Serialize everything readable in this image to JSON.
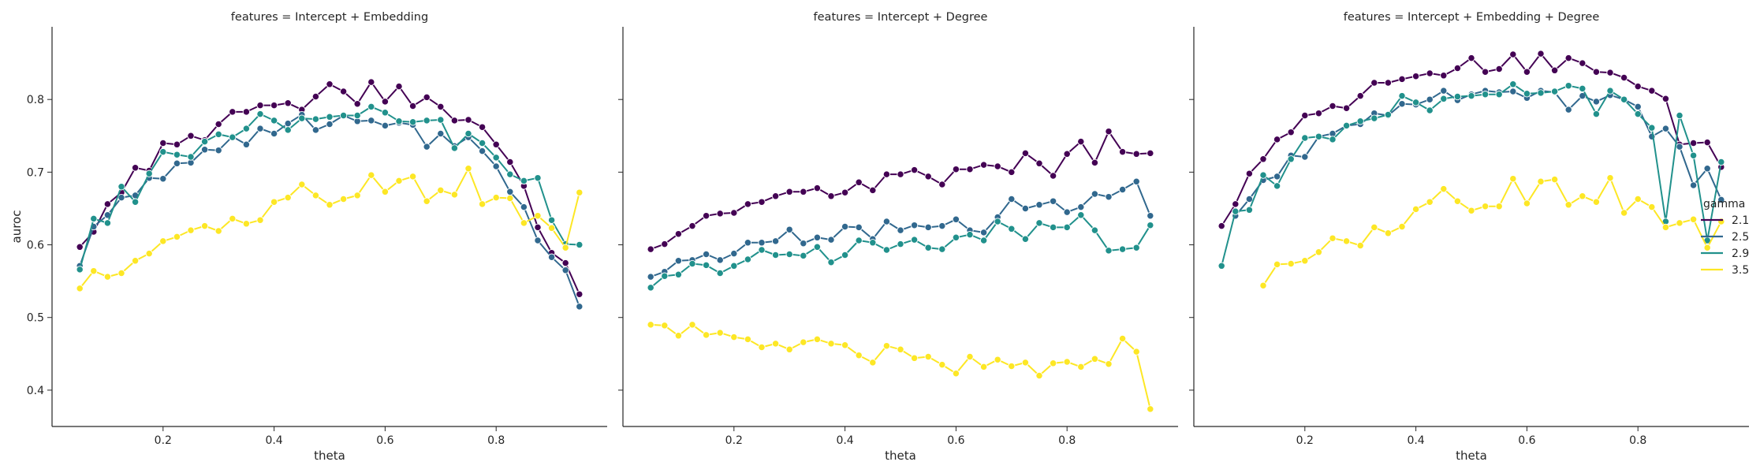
{
  "chart_data": {
    "type": "line",
    "ylabel": "auroc",
    "xlabel": "theta",
    "xlim": [
      0.0,
      1.0
    ],
    "ylim": [
      0.35,
      0.9
    ],
    "xticks": [
      0.2,
      0.4,
      0.6,
      0.8
    ],
    "xtick_labels": [
      "0.2",
      "0.4",
      "0.6",
      "0.8"
    ],
    "yticks": [
      0.4,
      0.5,
      0.6,
      0.7,
      0.8
    ],
    "ytick_labels": [
      "0.4",
      "0.5",
      "0.6",
      "0.7",
      "0.8"
    ],
    "grid": false,
    "markers": true,
    "legend": {
      "title": "gamma",
      "placement": "right",
      "entries": [
        "2.1",
        "2.5",
        "2.9",
        "3.5"
      ],
      "colors": [
        "#440154",
        "#31688e",
        "#21918c",
        "#fde725"
      ]
    },
    "panels": [
      {
        "title": "features = Intercept + Embedding",
        "x": [
          0.05,
          0.075,
          0.1,
          0.125,
          0.15,
          0.175,
          0.2,
          0.225,
          0.25,
          0.275,
          0.3,
          0.325,
          0.35,
          0.375,
          0.4,
          0.425,
          0.45,
          0.475,
          0.5,
          0.525,
          0.55,
          0.575,
          0.6,
          0.625,
          0.65,
          0.675,
          0.7,
          0.725,
          0.75,
          0.775,
          0.8,
          0.825,
          0.85,
          0.875,
          0.9,
          0.925,
          0.95
        ],
        "series": [
          {
            "name": "2.1",
            "values": [
              0.597,
              0.618,
              0.656,
              0.672,
              0.706,
              0.702,
              0.74,
              0.738,
              0.75,
              0.744,
              0.766,
              0.783,
              0.783,
              0.792,
              0.792,
              0.795,
              0.786,
              0.804,
              0.821,
              0.811,
              0.794,
              0.824,
              0.797,
              0.818,
              0.791,
              0.803,
              0.79,
              0.771,
              0.772,
              0.762,
              0.738,
              0.714,
              0.681,
              0.624,
              0.589,
              0.575,
              0.532
            ]
          },
          {
            "name": "2.5",
            "values": [
              0.571,
              0.625,
              0.641,
              0.665,
              0.668,
              0.692,
              0.691,
              0.712,
              0.713,
              0.731,
              0.73,
              0.749,
              0.738,
              0.76,
              0.753,
              0.767,
              0.779,
              0.758,
              0.766,
              0.778,
              0.77,
              0.771,
              0.764,
              0.768,
              0.765,
              0.735,
              0.753,
              0.736,
              0.748,
              0.729,
              0.708,
              0.673,
              0.652,
              0.606,
              0.583,
              0.565,
              0.515
            ]
          },
          {
            "name": "2.9",
            "values": [
              0.566,
              0.636,
              0.63,
              0.68,
              0.659,
              0.698,
              0.728,
              0.724,
              0.721,
              0.742,
              0.752,
              0.748,
              0.76,
              0.78,
              0.771,
              0.758,
              0.774,
              0.773,
              0.776,
              0.778,
              0.778,
              0.79,
              0.782,
              0.77,
              0.769,
              0.771,
              0.772,
              0.733,
              0.753,
              0.74,
              0.72,
              0.697,
              0.688,
              0.692,
              0.634,
              0.601,
              0.6
            ]
          },
          {
            "name": "3.5",
            "values": [
              0.54,
              0.564,
              0.556,
              0.561,
              0.578,
              0.588,
              0.605,
              0.611,
              0.62,
              0.626,
              0.619,
              0.636,
              0.629,
              0.634,
              0.659,
              0.665,
              0.683,
              0.668,
              0.655,
              0.663,
              0.668,
              0.696,
              0.673,
              0.688,
              0.694,
              0.66,
              0.675,
              0.669,
              0.705,
              0.656,
              0.665,
              0.664,
              0.63,
              0.64,
              0.623,
              0.596,
              0.672
            ]
          }
        ]
      },
      {
        "title": "features = Intercept + Degree",
        "x": [
          0.05,
          0.075,
          0.1,
          0.125,
          0.15,
          0.175,
          0.2,
          0.225,
          0.25,
          0.275,
          0.3,
          0.325,
          0.35,
          0.375,
          0.4,
          0.425,
          0.45,
          0.475,
          0.5,
          0.525,
          0.55,
          0.575,
          0.6,
          0.625,
          0.65,
          0.675,
          0.7,
          0.725,
          0.75,
          0.775,
          0.8,
          0.825,
          0.85,
          0.875,
          0.9,
          0.925,
          0.95
        ],
        "series": [
          {
            "name": "2.1",
            "values": [
              0.594,
              0.601,
              0.615,
              0.626,
              0.64,
              0.643,
              0.644,
              0.656,
              0.659,
              0.667,
              0.673,
              0.673,
              0.678,
              0.667,
              0.672,
              0.686,
              0.675,
              0.697,
              0.697,
              0.703,
              0.694,
              0.683,
              0.704,
              0.704,
              0.71,
              0.708,
              0.7,
              0.726,
              0.712,
              0.695,
              0.725,
              0.742,
              0.713,
              0.756,
              0.728,
              0.725,
              0.726
            ]
          },
          {
            "name": "2.5",
            "values": [
              0.556,
              0.563,
              0.578,
              0.579,
              0.587,
              0.579,
              0.588,
              0.603,
              0.603,
              0.605,
              0.621,
              0.602,
              0.61,
              0.607,
              0.625,
              0.624,
              0.608,
              0.632,
              0.62,
              0.627,
              0.624,
              0.626,
              0.635,
              0.62,
              0.617,
              0.638,
              0.663,
              0.65,
              0.655,
              0.66,
              0.645,
              0.652,
              0.67,
              0.666,
              0.676,
              0.687,
              0.64
            ]
          },
          {
            "name": "2.9",
            "values": [
              0.541,
              0.557,
              0.559,
              0.574,
              0.572,
              0.561,
              0.571,
              0.58,
              0.593,
              0.586,
              0.587,
              0.585,
              0.597,
              0.576,
              0.586,
              0.606,
              0.603,
              0.593,
              0.601,
              0.607,
              0.596,
              0.594,
              0.61,
              0.614,
              0.606,
              0.632,
              0.622,
              0.608,
              0.63,
              0.624,
              0.624,
              0.641,
              0.62,
              0.592,
              0.594,
              0.596,
              0.627
            ]
          },
          {
            "name": "3.5",
            "values": [
              0.49,
              0.489,
              0.475,
              0.49,
              0.476,
              0.479,
              0.473,
              0.47,
              0.459,
              0.464,
              0.456,
              0.466,
              0.47,
              0.464,
              0.462,
              0.448,
              0.438,
              0.461,
              0.456,
              0.444,
              0.446,
              0.435,
              0.423,
              0.446,
              0.432,
              0.442,
              0.433,
              0.438,
              0.42,
              0.437,
              0.439,
              0.432,
              0.443,
              0.436,
              0.471,
              0.453,
              0.374
            ]
          }
        ]
      },
      {
        "title": "features = Intercept + Embedding + Degree",
        "x": [
          0.05,
          0.075,
          0.1,
          0.125,
          0.15,
          0.175,
          0.2,
          0.225,
          0.25,
          0.275,
          0.3,
          0.325,
          0.35,
          0.375,
          0.4,
          0.425,
          0.45,
          0.475,
          0.5,
          0.525,
          0.55,
          0.575,
          0.6,
          0.625,
          0.65,
          0.675,
          0.7,
          0.725,
          0.75,
          0.775,
          0.8,
          0.825,
          0.85,
          0.875,
          0.9,
          0.925,
          0.95
        ],
        "series": [
          {
            "name": "2.1",
            "values": [
              0.626,
              0.656,
              0.698,
              0.718,
              0.745,
              0.755,
              0.778,
              0.781,
              0.791,
              0.788,
              0.805,
              0.823,
              0.823,
              0.828,
              0.832,
              0.836,
              0.833,
              0.843,
              0.857,
              0.838,
              0.842,
              0.862,
              0.838,
              0.863,
              0.84,
              0.857,
              0.85,
              0.838,
              0.837,
              0.83,
              0.818,
              0.812,
              0.801,
              0.738,
              0.74,
              0.741,
              0.707
            ]
          },
          {
            "name": "2.5",
            "values": [
              null,
              0.64,
              0.663,
              0.689,
              0.694,
              0.723,
              0.721,
              0.749,
              0.753,
              0.764,
              0.766,
              0.781,
              0.778,
              0.794,
              0.793,
              0.8,
              0.812,
              0.799,
              0.807,
              0.812,
              0.81,
              0.811,
              0.802,
              0.812,
              0.81,
              0.786,
              0.805,
              0.797,
              0.806,
              0.8,
              0.79,
              0.749,
              0.76,
              0.735,
              0.682,
              0.705,
              0.662
            ]
          },
          {
            "name": "2.9",
            "values": [
              0.571,
              0.646,
              0.648,
              0.696,
              0.681,
              0.718,
              0.747,
              0.749,
              0.745,
              0.764,
              0.77,
              0.774,
              0.779,
              0.805,
              0.796,
              0.785,
              0.801,
              0.804,
              0.805,
              0.807,
              0.807,
              0.821,
              0.808,
              0.809,
              0.811,
              0.819,
              0.815,
              0.78,
              0.812,
              0.8,
              0.78,
              0.761,
              0.632,
              0.778,
              0.723,
              0.606,
              0.714
            ]
          },
          {
            "name": "3.5",
            "values": [
              null,
              null,
              null,
              0.544,
              0.573,
              0.574,
              0.578,
              0.59,
              0.609,
              0.605,
              0.599,
              0.624,
              0.616,
              0.625,
              0.649,
              0.659,
              0.677,
              0.66,
              0.647,
              0.653,
              0.653,
              0.691,
              0.657,
              0.687,
              0.69,
              0.655,
              0.667,
              0.659,
              0.692,
              0.644,
              0.663,
              0.652,
              0.624,
              0.63,
              0.635,
              0.596,
              0.632
            ]
          }
        ]
      }
    ]
  }
}
